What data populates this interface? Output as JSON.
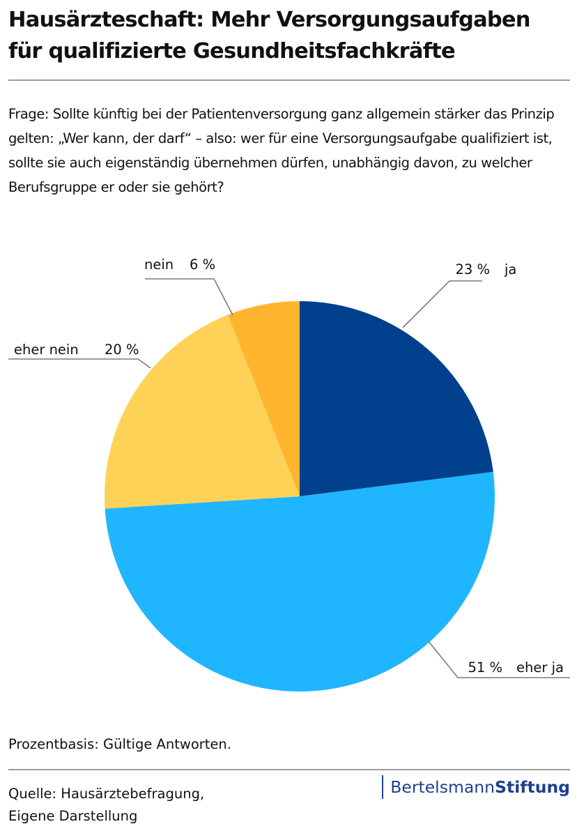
{
  "header": {
    "title_line1": "Hausärzteschaft: Mehr Versorgungsaufgaben",
    "title_line2": "für qualifizierte Gesundheitsfachkräfte",
    "question": "Frage: Sollte künftig bei der Patientenversorgung ganz allgemein stärker das Prinzip gelten: „Wer kann, der darf“ – also: wer für eine Versor­gungsaufgabe qualifiziert ist, sollte sie auch eigenständig übernehmen dürfen, unabhängig davon, zu welcher Berufsgruppe er oder sie gehört?"
  },
  "footer": {
    "basis": "Prozentbasis: Gültige Antworten.",
    "source_line1": "Quelle: Hausärztebefragung,",
    "source_line2": "Eigene Darstellung",
    "logo_regular": "Bertelsmann",
    "logo_bold": "Stiftung"
  },
  "chart_data": {
    "type": "pie",
    "slices": [
      {
        "label": "ja",
        "value": 23,
        "value_label": "23 %",
        "color": "#01408d"
      },
      {
        "label": "eher ja",
        "value": 51,
        "value_label": "51 %",
        "color": "#20b5ff"
      },
      {
        "label": "eher nein",
        "value": 20,
        "value_label": "20 %",
        "color": "#fdd257"
      },
      {
        "label": "nein",
        "value": 6,
        "value_label": "6 %",
        "color": "#feb52d"
      }
    ]
  }
}
